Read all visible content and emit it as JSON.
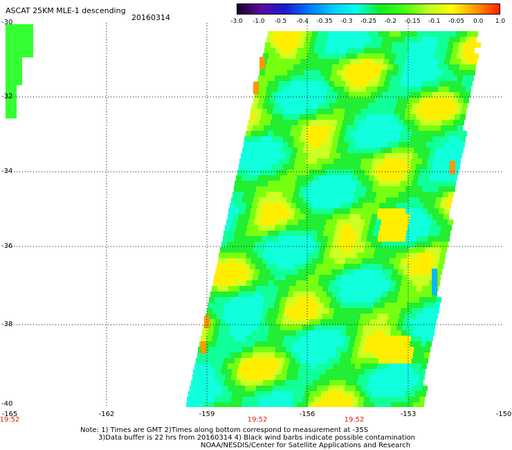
{
  "header": {
    "title": "ASCAT 25KM MLE-1 descending",
    "date": "20160314"
  },
  "colorbar": {
    "stops": [
      "#1a0026",
      "#5a0aa0",
      "#1a1acc",
      "#0077ff",
      "#00ccff",
      "#00ffee",
      "#11ee22",
      "#44ff11",
      "#bbff22",
      "#ffff00",
      "#ff9900",
      "#ff2200"
    ],
    "ticks": [
      "-3.0",
      "-1.0",
      "-0.5",
      "-0.4",
      "-0.35",
      "-0.3",
      "-0.25",
      "-0.2",
      "-0.15",
      "-0.1",
      "-0.05",
      "0.0",
      "1.0"
    ]
  },
  "axes": {
    "lat_labels": [
      "-30",
      "-32",
      "-34",
      "-36",
      "-38",
      "-40"
    ],
    "lon_labels": [
      "-165",
      "-162",
      "-159",
      "-156",
      "-153",
      "-150"
    ],
    "times": [
      "19:52",
      "19:52",
      "19:52"
    ]
  },
  "footer": {
    "note1": "Note: 1) Times are GMT 2)Times along bottom correspond to measurement at -35S",
    "note2": "3)Data buffer is 22 hrs from 20160314 4) Black wind barbs indicate possible contamination",
    "credit": "NOAA/NESDIS/Center for Satellite Applications and Research"
  }
}
